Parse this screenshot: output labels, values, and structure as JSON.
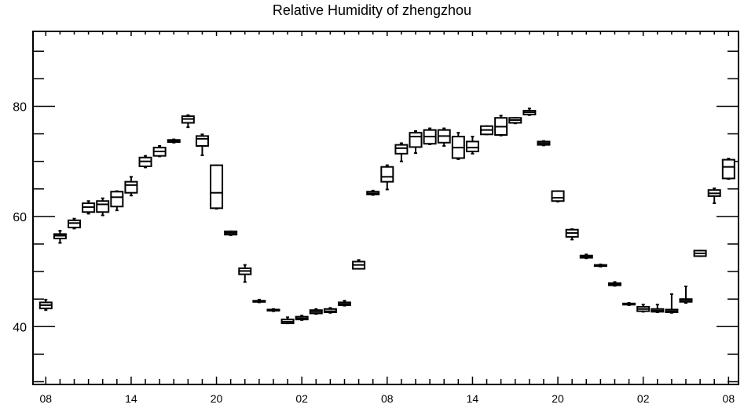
{
  "chart_data": {
    "type": "box",
    "title": "Relative Humidity of zhengzhou",
    "xlabel": "",
    "ylabel": "",
    "ylim": [
      29.5,
      93.6
    ],
    "yticks": [
      40,
      60,
      80
    ],
    "x_tick_labels": [
      "08",
      "14",
      "20",
      "02",
      "08",
      "14",
      "20",
      "02",
      "08"
    ],
    "x_tick_hours": [
      0,
      6,
      12,
      18,
      24,
      30,
      36,
      42,
      48
    ],
    "xlim": [
      -0.9,
      48.7
    ],
    "grid": false,
    "boxes": [
      {
        "hour": 0,
        "whisker_low": 43.0,
        "q1": 43.3,
        "median": 43.9,
        "q3": 44.4,
        "whisker_high": 44.9
      },
      {
        "hour": 1,
        "whisker_low": 55.2,
        "q1": 56.0,
        "median": 56.5,
        "q3": 56.8,
        "whisker_high": 57.4
      },
      {
        "hour": 2,
        "whisker_low": 57.8,
        "q1": 58.0,
        "median": 58.8,
        "q3": 59.3,
        "whisker_high": 59.6
      },
      {
        "hour": 3,
        "whisker_low": 60.5,
        "q1": 60.8,
        "median": 61.7,
        "q3": 62.4,
        "whisker_high": 62.8
      },
      {
        "hour": 4,
        "whisker_low": 60.2,
        "q1": 60.8,
        "median": 62.2,
        "q3": 62.8,
        "whisker_high": 63.3
      },
      {
        "hour": 5,
        "whisker_low": 61.1,
        "q1": 61.8,
        "median": 63.5,
        "q3": 64.5,
        "whisker_high": 64.6
      },
      {
        "hour": 6,
        "whisker_low": 63.8,
        "q1": 64.3,
        "median": 65.7,
        "q3": 66.3,
        "whisker_high": 67.2
      },
      {
        "hour": 7,
        "whisker_low": 68.9,
        "q1": 69.1,
        "median": 70.0,
        "q3": 70.7,
        "whisker_high": 71.0
      },
      {
        "hour": 8,
        "whisker_low": 70.9,
        "q1": 71.0,
        "median": 71.8,
        "q3": 72.5,
        "whisker_high": 72.8
      },
      {
        "hour": 9,
        "whisker_low": 73.4,
        "q1": 73.5,
        "median": 73.7,
        "q3": 73.9,
        "whisker_high": 74.0
      },
      {
        "hour": 10,
        "whisker_low": 76.2,
        "q1": 77.0,
        "median": 77.7,
        "q3": 78.2,
        "whisker_high": 78.4
      },
      {
        "hour": 11,
        "whisker_low": 71.1,
        "q1": 72.8,
        "median": 74.1,
        "q3": 74.6,
        "whisker_high": 74.9
      },
      {
        "hour": 12,
        "whisker_low": 61.4,
        "q1": 61.5,
        "median": 64.3,
        "q3": 69.3,
        "whisker_high": 69.3
      },
      {
        "hour": 13,
        "whisker_low": 56.6,
        "q1": 56.7,
        "median": 57.0,
        "q3": 57.3,
        "whisker_high": 57.3
      },
      {
        "hour": 14,
        "whisker_low": 48.1,
        "q1": 49.5,
        "median": 50.1,
        "q3": 50.6,
        "whisker_high": 51.2
      },
      {
        "hour": 15,
        "whisker_low": 44.4,
        "q1": 44.5,
        "median": 44.6,
        "q3": 44.7,
        "whisker_high": 44.9
      },
      {
        "hour": 16,
        "whisker_low": 42.8,
        "q1": 42.9,
        "median": 43.0,
        "q3": 43.1,
        "whisker_high": 43.2
      },
      {
        "hour": 17,
        "whisker_low": 40.6,
        "q1": 40.6,
        "median": 40.9,
        "q3": 41.3,
        "whisker_high": 41.7
      },
      {
        "hour": 18,
        "whisker_low": 41.2,
        "q1": 41.3,
        "median": 41.5,
        "q3": 41.8,
        "whisker_high": 42.0
      },
      {
        "hour": 19,
        "whisker_low": 42.3,
        "q1": 42.4,
        "median": 42.7,
        "q3": 43.0,
        "whisker_high": 43.2
      },
      {
        "hour": 20,
        "whisker_low": 42.5,
        "q1": 42.6,
        "median": 42.8,
        "q3": 43.2,
        "whisker_high": 43.4
      },
      {
        "hour": 21,
        "whisker_low": 43.8,
        "q1": 43.9,
        "median": 44.1,
        "q3": 44.4,
        "whisker_high": 44.7
      },
      {
        "hour": 22,
        "whisker_low": 50.5,
        "q1": 50.5,
        "median": 51.2,
        "q3": 51.8,
        "whisker_high": 52.1
      },
      {
        "hour": 23,
        "whisker_low": 63.9,
        "q1": 64.0,
        "median": 64.2,
        "q3": 64.5,
        "whisker_high": 64.7
      },
      {
        "hour": 24,
        "whisker_low": 64.9,
        "q1": 66.3,
        "median": 67.2,
        "q3": 69.0,
        "whisker_high": 69.3
      },
      {
        "hour": 25,
        "whisker_low": 70.0,
        "q1": 71.4,
        "median": 72.4,
        "q3": 73.0,
        "whisker_high": 73.3
      },
      {
        "hour": 26,
        "whisker_low": 71.5,
        "q1": 72.6,
        "median": 74.5,
        "q3": 75.2,
        "whisker_high": 75.5
      },
      {
        "hour": 27,
        "whisker_low": 73.1,
        "q1": 73.2,
        "median": 74.5,
        "q3": 75.7,
        "whisker_high": 76.0
      },
      {
        "hour": 28,
        "whisker_low": 72.8,
        "q1": 73.4,
        "median": 74.6,
        "q3": 75.7,
        "whisker_high": 76.0
      },
      {
        "hour": 29,
        "whisker_low": 70.4,
        "q1": 70.6,
        "median": 72.5,
        "q3": 74.5,
        "whisker_high": 75.2
      },
      {
        "hour": 30,
        "whisker_low": 71.4,
        "q1": 71.8,
        "median": 72.5,
        "q3": 73.6,
        "whisker_high": 74.5
      },
      {
        "hour": 31,
        "whisker_low": 74.9,
        "q1": 74.9,
        "median": 75.7,
        "q3": 76.4,
        "whisker_high": 76.4
      },
      {
        "hour": 32,
        "whisker_low": 74.7,
        "q1": 74.8,
        "median": 76.3,
        "q3": 77.9,
        "whisker_high": 78.3
      },
      {
        "hour": 33,
        "whisker_low": 76.9,
        "q1": 77.0,
        "median": 77.5,
        "q3": 77.9,
        "whisker_high": 77.9
      },
      {
        "hour": 34,
        "whisker_low": 78.4,
        "q1": 78.5,
        "median": 78.9,
        "q3": 79.2,
        "whisker_high": 79.6
      },
      {
        "hour": 35,
        "whisker_low": 72.9,
        "q1": 73.0,
        "median": 73.3,
        "q3": 73.6,
        "whisker_high": 73.7
      },
      {
        "hour": 36,
        "whisker_low": 62.7,
        "q1": 62.8,
        "median": 63.4,
        "q3": 64.6,
        "whisker_high": 64.6
      },
      {
        "hour": 37,
        "whisker_low": 55.8,
        "q1": 56.3,
        "median": 57.0,
        "q3": 57.6,
        "whisker_high": 57.7
      },
      {
        "hour": 38,
        "whisker_low": 52.4,
        "q1": 52.5,
        "median": 52.7,
        "q3": 52.9,
        "whisker_high": 53.1
      },
      {
        "hour": 39,
        "whisker_low": 50.9,
        "q1": 51.0,
        "median": 51.1,
        "q3": 51.2,
        "whisker_high": 51.3
      },
      {
        "hour": 40,
        "whisker_low": 47.4,
        "q1": 47.5,
        "median": 47.7,
        "q3": 47.9,
        "whisker_high": 48.1
      },
      {
        "hour": 41,
        "whisker_low": 43.9,
        "q1": 44.0,
        "median": 44.1,
        "q3": 44.2,
        "whisker_high": 44.3
      },
      {
        "hour": 42,
        "whisker_low": 42.7,
        "q1": 42.8,
        "median": 43.2,
        "q3": 43.6,
        "whisker_high": 44.0
      },
      {
        "hour": 43,
        "whisker_low": 42.6,
        "q1": 42.7,
        "median": 42.9,
        "q3": 43.2,
        "whisker_high": 44.0
      },
      {
        "hour": 44,
        "whisker_low": 42.5,
        "q1": 42.6,
        "median": 42.8,
        "q3": 43.1,
        "whisker_high": 45.9
      },
      {
        "hour": 45,
        "whisker_low": 44.3,
        "q1": 44.5,
        "median": 44.8,
        "q3": 45.0,
        "whisker_high": 47.3
      },
      {
        "hour": 46,
        "whisker_low": 52.8,
        "q1": 52.8,
        "median": 53.3,
        "q3": 53.8,
        "whisker_high": 53.8
      },
      {
        "hour": 47,
        "whisker_low": 62.4,
        "q1": 63.7,
        "median": 64.2,
        "q3": 64.8,
        "whisker_high": 65.1
      },
      {
        "hour": 48,
        "whisker_low": 66.8,
        "q1": 66.9,
        "median": 69.0,
        "q3": 70.3,
        "whisker_high": 70.5
      }
    ]
  }
}
